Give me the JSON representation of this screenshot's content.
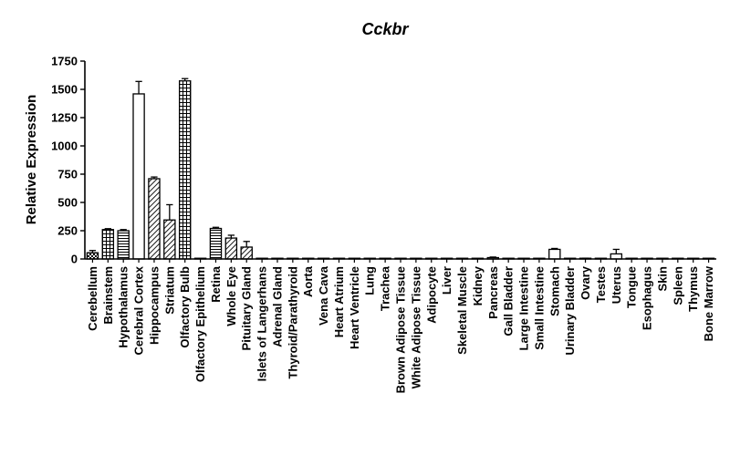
{
  "chart_data": {
    "type": "bar",
    "title": "Cckbr",
    "xlabel": "",
    "ylabel": "Relative Expression",
    "ylim": [
      0,
      1750
    ],
    "yticks": [
      0,
      250,
      500,
      750,
      1000,
      1250,
      1500,
      1750
    ],
    "grid": false,
    "legend": "none",
    "categories": [
      "Cerebellum",
      "Brainstem",
      "Hypothalamus",
      "Cerebral Cortex",
      "Hippocampus",
      "Striatum",
      "Olfactory Bulb",
      "Olfactory Epithelium",
      "Retina",
      "Whole Eye",
      "Pituitary Gland",
      "Islets of Langerhans",
      "Adrenal Gland",
      "Thyroid/Parathyroid",
      "Aorta",
      "Vena Cava",
      "Heart Atrium",
      "Heart Ventricle",
      "Lung",
      "Trachea",
      "Brown Adipose Tissue",
      "White Adipose Tissue",
      "Adipocyte",
      "Liver",
      "Skeletal Muscle",
      "Kidney",
      "Pancreas",
      "Gall Bladder",
      "Large Intestine",
      "Small Intestine",
      "Stomach",
      "Urinary Bladder",
      "Ovary",
      "Testes",
      "Uterus",
      "Tongue",
      "Esophagus",
      "Skin",
      "Spleen",
      "Thymus",
      "Bone Marrow"
    ],
    "values": [
      55,
      260,
      250,
      1460,
      710,
      345,
      1575,
      3,
      270,
      185,
      105,
      2,
      2,
      2,
      2,
      2,
      2,
      2,
      3,
      3,
      2,
      2,
      2,
      2,
      2,
      2,
      12,
      2,
      2,
      2,
      85,
      2,
      5,
      2,
      45,
      2,
      2,
      3,
      2,
      2,
      2
    ],
    "errors": [
      20,
      8,
      10,
      110,
      15,
      135,
      20,
      1,
      10,
      25,
      50,
      1,
      1,
      1,
      1,
      1,
      1,
      1,
      1,
      1,
      1,
      1,
      1,
      1,
      1,
      1,
      5,
      1,
      1,
      1,
      8,
      1,
      2,
      1,
      40,
      1,
      1,
      1,
      1,
      1,
      1
    ]
  }
}
